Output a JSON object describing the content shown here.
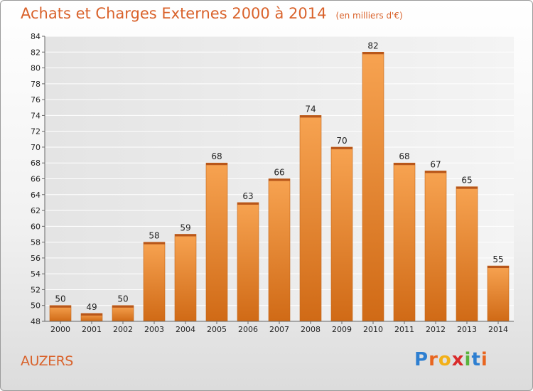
{
  "title": "Achats et Charges Externes 2000 à 2014",
  "subtitle": "(en milliers d'€)",
  "commune": "AUZERS",
  "logo": {
    "letters": [
      "P",
      "r",
      "o",
      "x",
      "i",
      "t",
      "i"
    ],
    "colors": [
      "#2e7fd1",
      "#e8651f",
      "#f2b018",
      "#d92b2b",
      "#59b33c",
      "#2e7fd1",
      "#e8651f"
    ]
  },
  "colors": {
    "bar": "#f0963a",
    "bar_dark": "#cf6a16",
    "title": "#d9622b"
  },
  "chart_data": {
    "type": "bar",
    "title": "Achats et Charges Externes 2000 à 2014",
    "subtitle": "(en milliers d'€)",
    "xlabel": "",
    "ylabel": "",
    "categories": [
      "2000",
      "2001",
      "2002",
      "2003",
      "2004",
      "2005",
      "2006",
      "2007",
      "2008",
      "2009",
      "2010",
      "2011",
      "2012",
      "2013",
      "2014"
    ],
    "values": [
      50,
      49,
      50,
      58,
      59,
      68,
      63,
      66,
      74,
      70,
      82,
      68,
      67,
      65,
      55
    ],
    "ylim": [
      48,
      84
    ],
    "yticks": [
      48,
      50,
      52,
      54,
      56,
      58,
      60,
      62,
      64,
      66,
      68,
      70,
      72,
      74,
      76,
      78,
      80,
      82,
      84
    ],
    "grid": true,
    "legend": "none"
  }
}
